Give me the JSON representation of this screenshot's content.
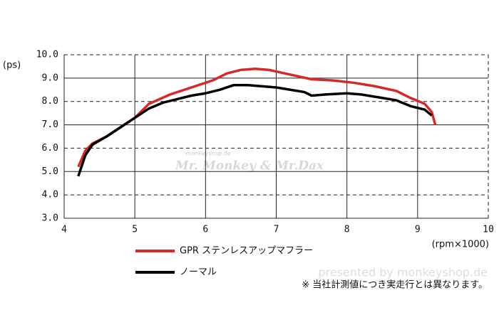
{
  "chart_data": {
    "type": "line",
    "y_label": "(ps)",
    "x_label": "(rpm×1000)",
    "xlim": [
      4,
      10
    ],
    "xticks": [
      4,
      5,
      6,
      7,
      8,
      9,
      10
    ],
    "ylim": [
      3,
      10
    ],
    "yticks": [
      {
        "value": 3,
        "label": "3.0"
      },
      {
        "value": 4,
        "label": "4.0"
      },
      {
        "value": 5,
        "label": "5.0"
      },
      {
        "value": 6,
        "label": "6.0"
      },
      {
        "value": 7,
        "label": "7.0"
      },
      {
        "value": 8,
        "label": "8.0"
      },
      {
        "value": 9,
        "label": "9.0"
      },
      {
        "value": 10,
        "label": "10.0"
      }
    ],
    "grid": true,
    "series": [
      {
        "name": "GPR ステンレスアップマフラー",
        "color": "#d42a2a",
        "x": [
          4.2,
          4.3,
          4.4,
          4.6,
          4.8,
          5.0,
          5.2,
          5.5,
          5.8,
          6.1,
          6.3,
          6.5,
          6.7,
          6.9,
          7.2,
          7.5,
          7.8,
          8.1,
          8.4,
          8.7,
          8.9,
          9.1,
          9.2,
          9.25
        ],
        "values": [
          5.2,
          5.9,
          6.2,
          6.5,
          6.9,
          7.3,
          7.9,
          8.3,
          8.6,
          8.9,
          9.2,
          9.35,
          9.4,
          9.35,
          9.15,
          8.95,
          8.9,
          8.8,
          8.65,
          8.45,
          8.15,
          7.9,
          7.55,
          7.0
        ]
      },
      {
        "name": "ノーマル",
        "color": "#000000",
        "x": [
          4.2,
          4.3,
          4.4,
          4.6,
          4.8,
          5.0,
          5.2,
          5.4,
          5.6,
          5.8,
          6.0,
          6.2,
          6.4,
          6.6,
          6.8,
          7.0,
          7.2,
          7.4,
          7.5,
          7.7,
          8.0,
          8.2,
          8.5,
          8.7,
          8.9,
          9.1,
          9.2
        ],
        "values": [
          4.8,
          5.7,
          6.15,
          6.5,
          6.9,
          7.3,
          7.7,
          7.95,
          8.1,
          8.25,
          8.35,
          8.5,
          8.7,
          8.7,
          8.65,
          8.6,
          8.5,
          8.4,
          8.25,
          8.3,
          8.35,
          8.3,
          8.15,
          8.05,
          7.8,
          7.65,
          7.4
        ]
      }
    ],
    "note": "※ 当社計測値につき実走行とは異なります。",
    "watermarks": [
      "monkeyshop.de",
      "Mr. Monkey & Mr.Dax",
      "presented by monkeyshop.de"
    ]
  }
}
